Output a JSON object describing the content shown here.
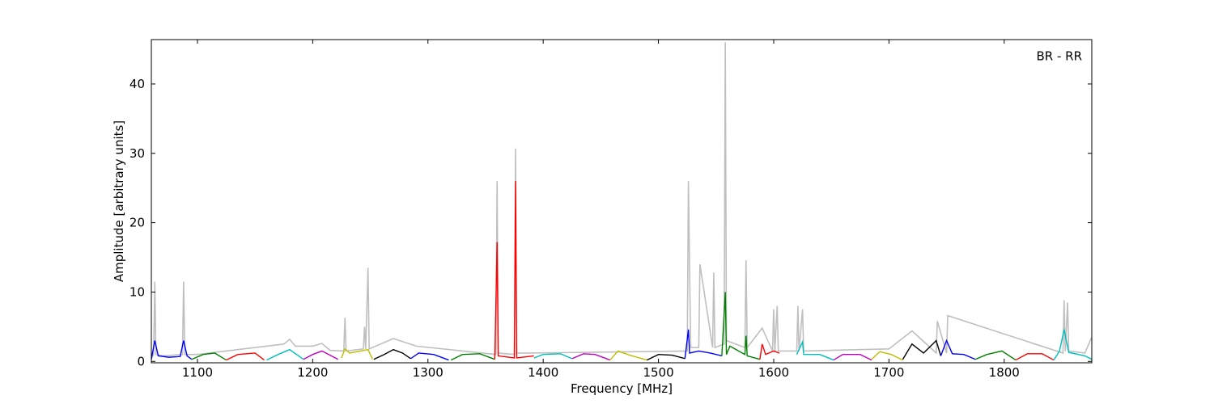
{
  "chart_data": {
    "type": "line",
    "annotation": "BR - RR",
    "xlabel": "Frequency [MHz]",
    "ylabel": "Amplitude [arbitrary units]",
    "xlim": [
      1060,
      1876
    ],
    "ylim": [
      -0.2,
      46.4
    ],
    "xticks": [
      1100,
      1200,
      1300,
      1400,
      1500,
      1600,
      1700,
      1800
    ],
    "yticks": [
      0,
      10,
      20,
      30,
      40
    ],
    "series": [
      {
        "color": "#bfbfbf",
        "x": [
          1060,
          1062,
          1063,
          1064,
          1070,
          1087,
          1088,
          1089,
          1100,
          1175,
          1180,
          1185,
          1200,
          1208,
          1215,
          1227,
          1228,
          1229,
          1244,
          1245,
          1246,
          1248,
          1249,
          1270,
          1290,
          1359,
          1360,
          1361,
          1375,
          1376,
          1377,
          1390,
          1525,
          1526,
          1527,
          1528,
          1535,
          1536,
          1547,
          1548,
          1549,
          1557,
          1558,
          1559,
          1575,
          1576,
          1577,
          1590,
          1599,
          1600,
          1601,
          1603,
          1604,
          1620,
          1621,
          1622,
          1625,
          1626,
          1700,
          1720,
          1741,
          1742,
          1750,
          1751,
          1851,
          1852,
          1853,
          1855,
          1856,
          1870,
          1876
        ],
        "values": [
          0.5,
          1,
          11.5,
          1,
          0.8,
          1,
          11.5,
          1,
          1,
          2.5,
          3.2,
          2.2,
          2.2,
          2.6,
          1.6,
          1.5,
          6.3,
          1.5,
          1.8,
          5,
          1.8,
          13.5,
          1.8,
          3.3,
          2.2,
          1,
          26,
          1.2,
          1,
          30.7,
          1.2,
          1.2,
          1.5,
          26,
          13.5,
          2,
          2,
          14,
          2,
          12.8,
          2,
          2.5,
          46,
          3,
          2,
          14.6,
          2,
          4.8,
          1.5,
          7.5,
          1.5,
          8,
          1.5,
          1.5,
          8,
          1.5,
          7.5,
          1.5,
          1.8,
          4.4,
          1.2,
          5.8,
          1.2,
          6.6,
          1.2,
          8.8,
          1.5,
          8.5,
          1.5,
          1.2,
          3.5
        ]
      },
      {
        "color": "#0000ff",
        "x": [
          1060,
          1063,
          1066,
          1075,
          1085,
          1088,
          1091,
          1095
        ],
        "values": [
          0.3,
          3,
          0.8,
          0.6,
          0.7,
          3,
          0.8,
          0.3
        ]
      },
      {
        "color": "#008000",
        "x": [
          1095,
          1105,
          1115,
          1125
        ],
        "values": [
          0.3,
          1,
          1.2,
          0.2
        ]
      },
      {
        "color": "#ff0000",
        "x": [
          1125,
          1135,
          1150,
          1158
        ],
        "values": [
          0.2,
          1,
          1.2,
          0.2
        ]
      },
      {
        "color": "#00bfbf",
        "x": [
          1160,
          1170,
          1180,
          1192
        ],
        "values": [
          0.2,
          1,
          1.7,
          0.3
        ]
      },
      {
        "color": "#bf00bf",
        "x": [
          1192,
          1200,
          1208,
          1222
        ],
        "values": [
          0.3,
          1,
          1.5,
          0.3
        ]
      },
      {
        "color": "#bfbf00",
        "x": [
          1225,
          1228,
          1232,
          1248,
          1252
        ],
        "values": [
          0.5,
          1.8,
          1.2,
          1.7,
          0.3
        ]
      },
      {
        "color": "#000000",
        "x": [
          1253,
          1262,
          1270,
          1278,
          1285
        ],
        "values": [
          0.3,
          1,
          1.7,
          1.2,
          0.4
        ]
      },
      {
        "color": "#0000ff",
        "x": [
          1285,
          1292,
          1305,
          1318
        ],
        "values": [
          0.4,
          1.2,
          1,
          0.2
        ]
      },
      {
        "color": "#008000",
        "x": [
          1320,
          1330,
          1345,
          1358
        ],
        "values": [
          0.2,
          1,
          1.1,
          0.3
        ]
      },
      {
        "color": "#ff0000",
        "x": [
          1358,
          1360,
          1361,
          1375,
          1376,
          1377,
          1392
        ],
        "values": [
          0.3,
          17.2,
          0.8,
          0.5,
          26,
          0.5,
          0.8
        ]
      },
      {
        "color": "#00bfbf",
        "x": [
          1392,
          1400,
          1415,
          1425
        ],
        "values": [
          0.5,
          1,
          1.1,
          0.4
        ]
      },
      {
        "color": "#bf00bf",
        "x": [
          1425,
          1435,
          1445,
          1458
        ],
        "values": [
          0.4,
          1.1,
          1,
          0.2
        ]
      },
      {
        "color": "#bfbf00",
        "x": [
          1458,
          1465,
          1475,
          1490
        ],
        "values": [
          0.2,
          1.5,
          0.9,
          0.2
        ]
      },
      {
        "color": "#000000",
        "x": [
          1490,
          1500,
          1512,
          1523
        ],
        "values": [
          0.2,
          1,
          0.9,
          0.4
        ]
      },
      {
        "color": "#0000ff",
        "x": [
          1523,
          1526,
          1527,
          1535,
          1545,
          1555
        ],
        "values": [
          0.4,
          4.6,
          1.2,
          1.5,
          1.2,
          0.8
        ]
      },
      {
        "color": "#008000",
        "x": [
          1555,
          1558,
          1559,
          1562,
          1575,
          1576,
          1577,
          1588
        ],
        "values": [
          0.8,
          10,
          1,
          2.2,
          1,
          3.7,
          0.8,
          0.3
        ]
      },
      {
        "color": "#ff0000",
        "x": [
          1588,
          1590,
          1593,
          1600,
          1605
        ],
        "values": [
          0.3,
          2.5,
          1,
          1.5,
          1.2
        ]
      },
      {
        "color": "#00bfbf",
        "x": [
          1620,
          1625,
          1626,
          1640,
          1652
        ],
        "values": [
          1,
          2.8,
          1,
          1,
          0.2
        ]
      },
      {
        "color": "#bf00bf",
        "x": [
          1652,
          1660,
          1675,
          1685
        ],
        "values": [
          0.2,
          1,
          1,
          0.2
        ]
      },
      {
        "color": "#bfbf00",
        "x": [
          1685,
          1692,
          1702,
          1712
        ],
        "values": [
          0.3,
          1.4,
          1,
          0.2
        ]
      },
      {
        "color": "#000000",
        "x": [
          1712,
          1720,
          1730,
          1741,
          1745
        ],
        "values": [
          0.3,
          2.5,
          1.2,
          3,
          0.8
        ]
      },
      {
        "color": "#0000ff",
        "x": [
          1745,
          1750,
          1755,
          1765,
          1775
        ],
        "values": [
          0.8,
          3,
          1.1,
          1,
          0.3
        ]
      },
      {
        "color": "#008000",
        "x": [
          1775,
          1785,
          1798,
          1810
        ],
        "values": [
          0.3,
          1,
          1.5,
          0.2
        ]
      },
      {
        "color": "#ff0000",
        "x": [
          1810,
          1820,
          1833,
          1843
        ],
        "values": [
          0.2,
          1.1,
          1.1,
          0.2
        ]
      },
      {
        "color": "#00bfbf",
        "x": [
          1843,
          1848,
          1852,
          1856,
          1870,
          1876
        ],
        "values": [
          0.2,
          1.5,
          4.6,
          1.3,
          0.8,
          0.3
        ]
      }
    ]
  }
}
